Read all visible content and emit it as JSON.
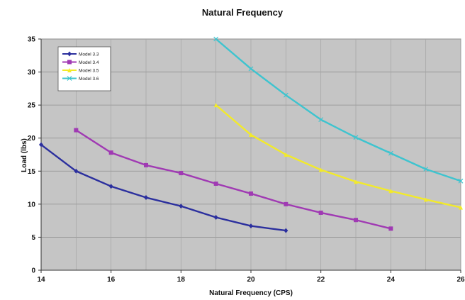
{
  "chart_data": {
    "type": "line",
    "title": "Natural Frequency",
    "xlabel": "Natural Frequency (CPS)",
    "ylabel": "Load (lbs)",
    "xlim": [
      14,
      26
    ],
    "ylim": [
      0,
      35
    ],
    "xticks": [
      14,
      16,
      18,
      20,
      22,
      24,
      26
    ],
    "yticks": [
      0,
      5,
      10,
      15,
      20,
      25,
      30,
      35
    ],
    "grid": true,
    "legend_position": "top-left",
    "series": [
      {
        "name": "Model 3.3",
        "color": "#2b2f9e",
        "marker": "diamond",
        "x": [
          14,
          15,
          16,
          17,
          18,
          19,
          20,
          21
        ],
        "y": [
          19,
          15,
          12.7,
          11,
          9.7,
          8,
          6.7,
          6
        ]
      },
      {
        "name": "Model 3.4",
        "color": "#a03ab3",
        "marker": "square",
        "x": [
          15,
          16,
          17,
          18,
          19,
          20,
          21,
          22,
          23,
          24
        ],
        "y": [
          21.2,
          17.8,
          15.9,
          14.7,
          13.1,
          11.6,
          10,
          8.7,
          7.6,
          6.3
        ]
      },
      {
        "name": "Model 3.5",
        "color": "#f2ea2a",
        "marker": "triangle",
        "x": [
          19,
          20,
          21,
          22,
          23,
          24,
          25,
          26
        ],
        "y": [
          25,
          20.5,
          17.5,
          15.2,
          13.4,
          12,
          10.7,
          9.5
        ]
      },
      {
        "name": "Model 3.6",
        "color": "#3ec4cf",
        "marker": "x",
        "x": [
          19,
          20,
          21,
          22,
          23,
          24,
          25,
          26
        ],
        "y": [
          35,
          30.5,
          26.5,
          22.8,
          20.1,
          17.7,
          15.3,
          13.5
        ]
      }
    ]
  }
}
